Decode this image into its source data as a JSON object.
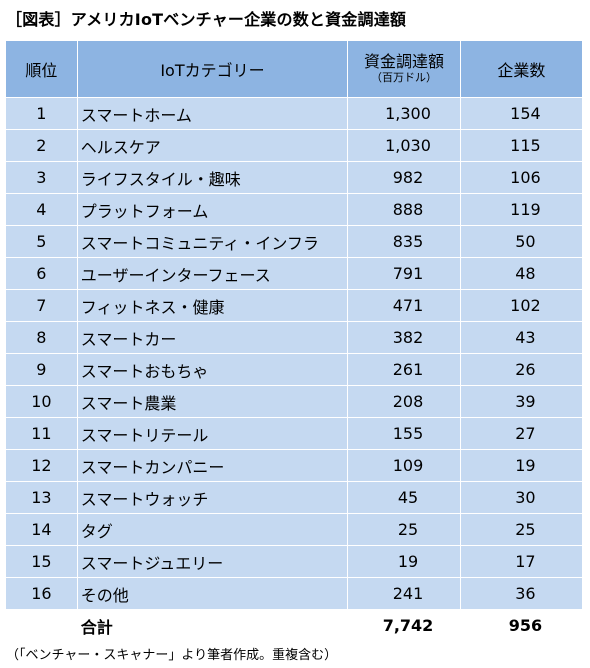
{
  "title": "［図表］アメリカIoTベンチャー企業の数と資金調達額",
  "headers": {
    "rank": "順位",
    "category": "IoTカテゴリー",
    "funds": "資金調達額",
    "funds_unit": "（百万ドル）",
    "count": "企業数"
  },
  "rows": [
    {
      "rank": "1",
      "category": "スマートホーム",
      "funds": "1,300",
      "count": "154"
    },
    {
      "rank": "2",
      "category": "ヘルスケア",
      "funds": "1,030",
      "count": "115"
    },
    {
      "rank": "3",
      "category": "ライフスタイル・趣味",
      "funds": "982",
      "count": "106"
    },
    {
      "rank": "4",
      "category": "プラットフォーム",
      "funds": "888",
      "count": "119"
    },
    {
      "rank": "5",
      "category": "スマートコミュニティ・インフラ",
      "funds": "835",
      "count": "50"
    },
    {
      "rank": "6",
      "category": "ユーザーインターフェース",
      "funds": "791",
      "count": "48"
    },
    {
      "rank": "7",
      "category": "フィットネス・健康",
      "funds": "471",
      "count": "102"
    },
    {
      "rank": "8",
      "category": "スマートカー",
      "funds": "382",
      "count": "43"
    },
    {
      "rank": "9",
      "category": "スマートおもちゃ",
      "funds": "261",
      "count": "26"
    },
    {
      "rank": "10",
      "category": "スマート農業",
      "funds": "208",
      "count": "39"
    },
    {
      "rank": "11",
      "category": "スマートリテール",
      "funds": "155",
      "count": "27"
    },
    {
      "rank": "12",
      "category": "スマートカンパニー",
      "funds": "109",
      "count": "19"
    },
    {
      "rank": "13",
      "category": "スマートウォッチ",
      "funds": "45",
      "count": "30"
    },
    {
      "rank": "14",
      "category": "タグ",
      "funds": "25",
      "count": "25"
    },
    {
      "rank": "15",
      "category": "スマートジュエリー",
      "funds": "19",
      "count": "17"
    },
    {
      "rank": "16",
      "category": "その他",
      "funds": "241",
      "count": "36"
    }
  ],
  "total": {
    "label": "合計",
    "funds": "7,742",
    "count": "956"
  },
  "note": "（「ベンチャー・スキャナー」より筆者作成。重複含む）"
}
